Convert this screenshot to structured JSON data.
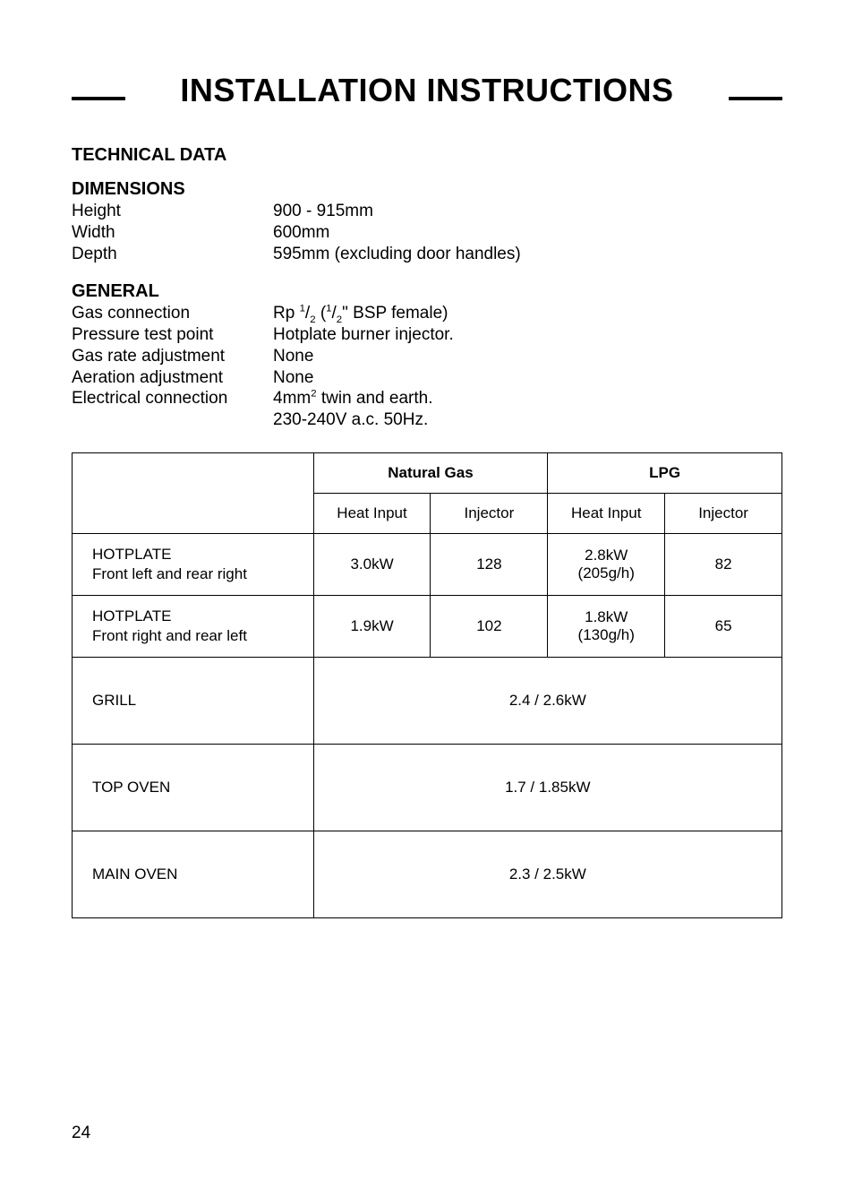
{
  "title": "INSTALLATION INSTRUCTIONS",
  "technical_data_heading": "TECHNICAL DATA",
  "dimensions": {
    "heading": "DIMENSIONS",
    "rows": [
      {
        "label": "Height",
        "value": "900 - 915mm"
      },
      {
        "label": "Width",
        "value": "600mm"
      },
      {
        "label": "Depth",
        "value": "595mm (excluding door handles)"
      }
    ]
  },
  "general": {
    "heading": "GENERAL",
    "gas_connection_label": "Gas connection",
    "gas_connection_value_pre": "Rp ",
    "gas_connection_value_mid": " (",
    "gas_connection_value_post": "\" BSP female)",
    "half_num": "1",
    "half_den": "2",
    "rows": [
      {
        "label": "Pressure test point",
        "value": "Hotplate burner injector."
      },
      {
        "label": "Gas rate adjustment",
        "value": "None"
      },
      {
        "label": "Aeration adjustment",
        "value": "None"
      }
    ],
    "electrical_label": "Electrical connection",
    "electrical_pre": "4mm",
    "electrical_sup": "2",
    "electrical_post": "  twin and earth.",
    "electrical_line2": "230-240V a.c. 50Hz."
  },
  "table": {
    "natural_gas": "Natural Gas",
    "lpg": "LPG",
    "heat_input": "Heat Input",
    "injector": "Injector",
    "rows_data": [
      {
        "label_line1": "HOTPLATE",
        "label_line2": "Front left and rear right",
        "ng_heat": "3.0kW",
        "ng_inj": "128",
        "lpg_heat_line1": "2.8kW",
        "lpg_heat_line2": "(205g/h)",
        "lpg_inj": "82"
      },
      {
        "label_line1": "HOTPLATE",
        "label_line2": "Front right and rear left",
        "ng_heat": "1.9kW",
        "ng_inj": "102",
        "lpg_heat_line1": "1.8kW",
        "lpg_heat_line2": "(130g/h)",
        "lpg_inj": "65"
      }
    ],
    "rows_wide": [
      {
        "label": "GRILL",
        "value": "2.4 / 2.6kW"
      },
      {
        "label": "TOP OVEN",
        "value": "1.7 / 1.85kW"
      },
      {
        "label": "MAIN OVEN",
        "value": "2.3 / 2.5kW"
      }
    ]
  },
  "page_number": "24",
  "colors": {
    "text": "#000000",
    "background": "#ffffff",
    "border": "#000000"
  }
}
